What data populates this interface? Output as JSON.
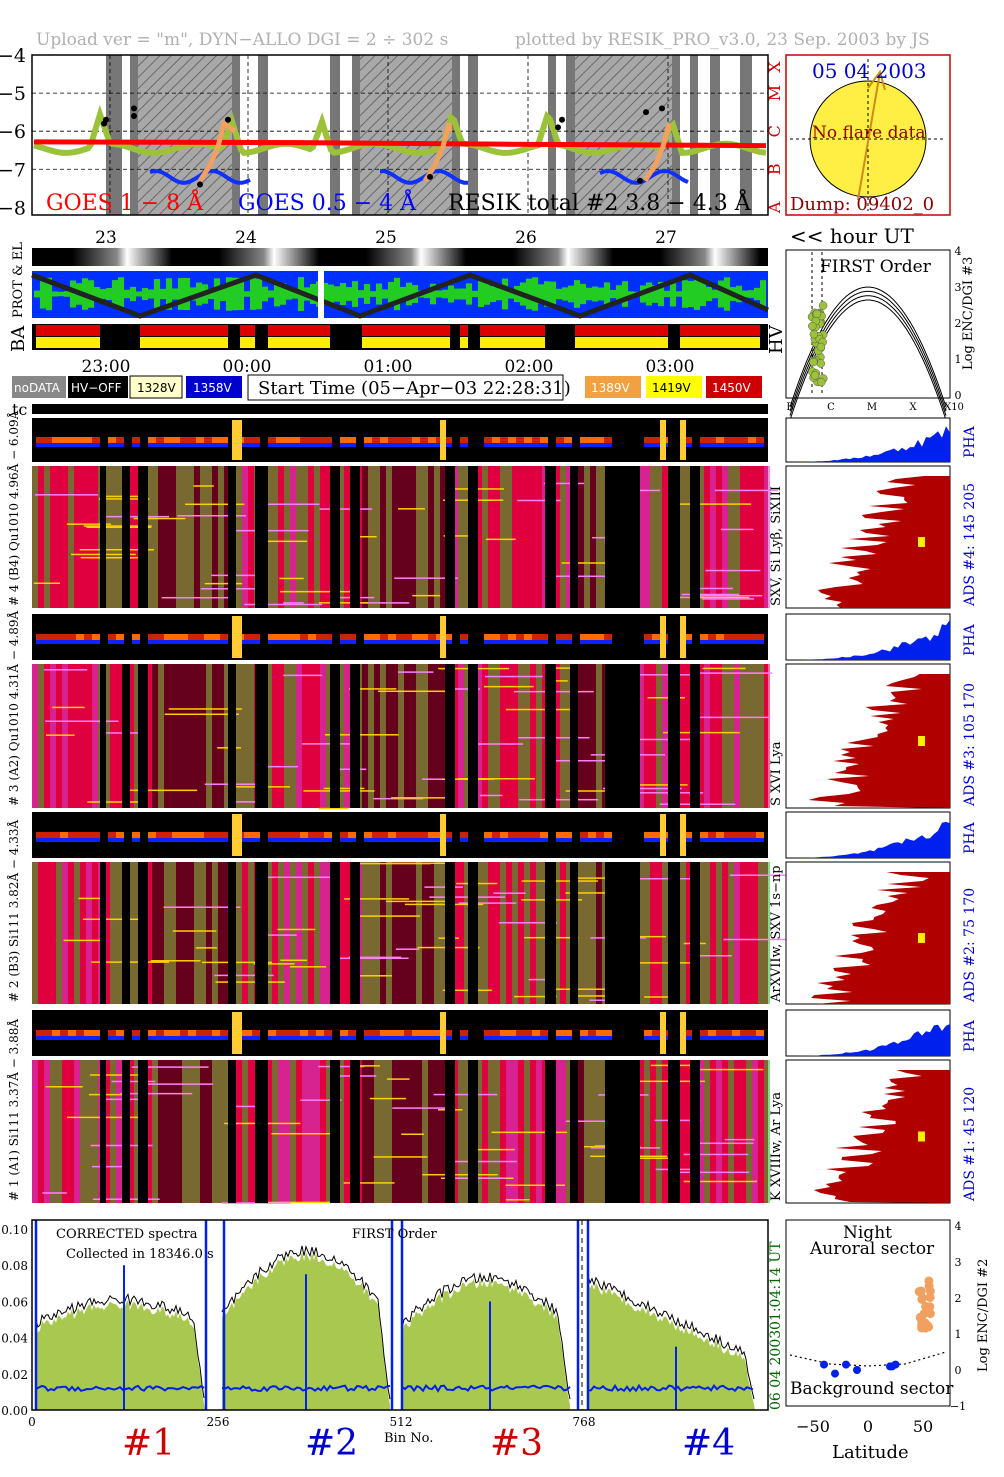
{
  "header": {
    "upload": "Upload ver = \"m\", DYN−ALLO DGI =   2 ÷ 302 s",
    "plotted": "plotted by RESIK_PRO_v3.0, 23 Sep. 2003 by JS"
  },
  "goes": {
    "ylabels": [
      "−4",
      "−5",
      "−6",
      "−7",
      "−8"
    ],
    "class_labels": [
      "X",
      "M",
      "C",
      "B",
      "A"
    ],
    "legend1": "GOES 1 − 8 Å",
    "legend2": "GOES 0.5 − 4 Å",
    "legend3": "RESIK total #2  3.8 − 4.3 Å",
    "orbit_ticks": [
      "23",
      "24",
      "25",
      "26",
      "27"
    ],
    "colors": {
      "goes1": "#ff0000",
      "goes2": "#0000ff",
      "resik": "#9cc23a",
      "flare": "#f2a060"
    }
  },
  "sun": {
    "date": "05 04 2003",
    "noflare": "No flare data",
    "dump": "Dump: 09402_0",
    "hour_label": "<< hour UT"
  },
  "strips": {
    "prot_el": "PROT & EL",
    "ba": "BA",
    "hv": "HV",
    "time_ticks": [
      "23:00",
      "00:00",
      "01:00",
      "02:00",
      "03:00"
    ]
  },
  "legend_boxes": {
    "nodata": "noDATA",
    "hvoff": "HV−OFF",
    "v1328": "1328V",
    "v1358": "1358V",
    "start": "Start Time (05−Apr−03 22:28:31)",
    "v1389": "1389V",
    "v1419": "1419V",
    "v1450": "1450V"
  },
  "first_order": {
    "title": "FIRST Order",
    "ylabel": "Log ENC/DGI #3",
    "yticks": [
      "4",
      "3",
      "2",
      "1",
      "0"
    ],
    "xticks": [
      "B",
      "C",
      "M",
      "X",
      "X10"
    ]
  },
  "tc": "tc",
  "channels": [
    {
      "pha_label": "# 4 (B4) Qu1010 4.96Å − 6.09Å",
      "id": "# 4 (B4) Qu1010 4.96Å − 6.09Å",
      "lines": "SXV, Si Lyβ, SiXIII",
      "ads": "ADS #4:  145 205",
      "pha": "PHA"
    },
    {
      "id": "# 3 (A2) Qu1010 4.31Å − 4.89Å",
      "lines": "S XVI Lya",
      "ads": "ADS #3:  105 170",
      "pha": "PHA"
    },
    {
      "id": "# 2 (B3) Si111 3.82Å − 4.33Å",
      "lines": "ArXVIIw, SXV 1s−np",
      "ads": "ADS #2:  75 170",
      "pha": "PHA"
    },
    {
      "id": "# 1 (A1) Si111 3.37Å − 3.88Å",
      "lines": "K XVIIIw, Ar Lya",
      "ads": "ADS #1:  45 120",
      "pha": "PHA"
    }
  ],
  "spectrum": {
    "yticks": [
      "0.10",
      "0.08",
      "0.06",
      "0.04",
      "0.02",
      "0.00"
    ],
    "xticks": [
      "0",
      "256",
      "512",
      "768"
    ],
    "xlabel": "Bin No.",
    "title1": "CORRECTED spectra",
    "title2": "Collected in 18346.0 s",
    "title3": "FIRST Order",
    "time1": "01:04:14 UT",
    "time2": "06 04 2003",
    "crystals": [
      "#1",
      "#2",
      "#3",
      "#4"
    ],
    "crystal_colors": [
      "#cc0000",
      "#0000cc",
      "#cc0000",
      "#0000cc"
    ]
  },
  "bg_plot": {
    "night": "Night",
    "auroral": "Auroral sector",
    "background": "Background sector",
    "ylabel": "Log ENC/DGI #2",
    "yticks": [
      "4",
      "3",
      "2",
      "1",
      "0",
      "−1"
    ],
    "xticks": [
      "−50",
      "0",
      "50"
    ],
    "xlabel": "Latitude"
  }
}
